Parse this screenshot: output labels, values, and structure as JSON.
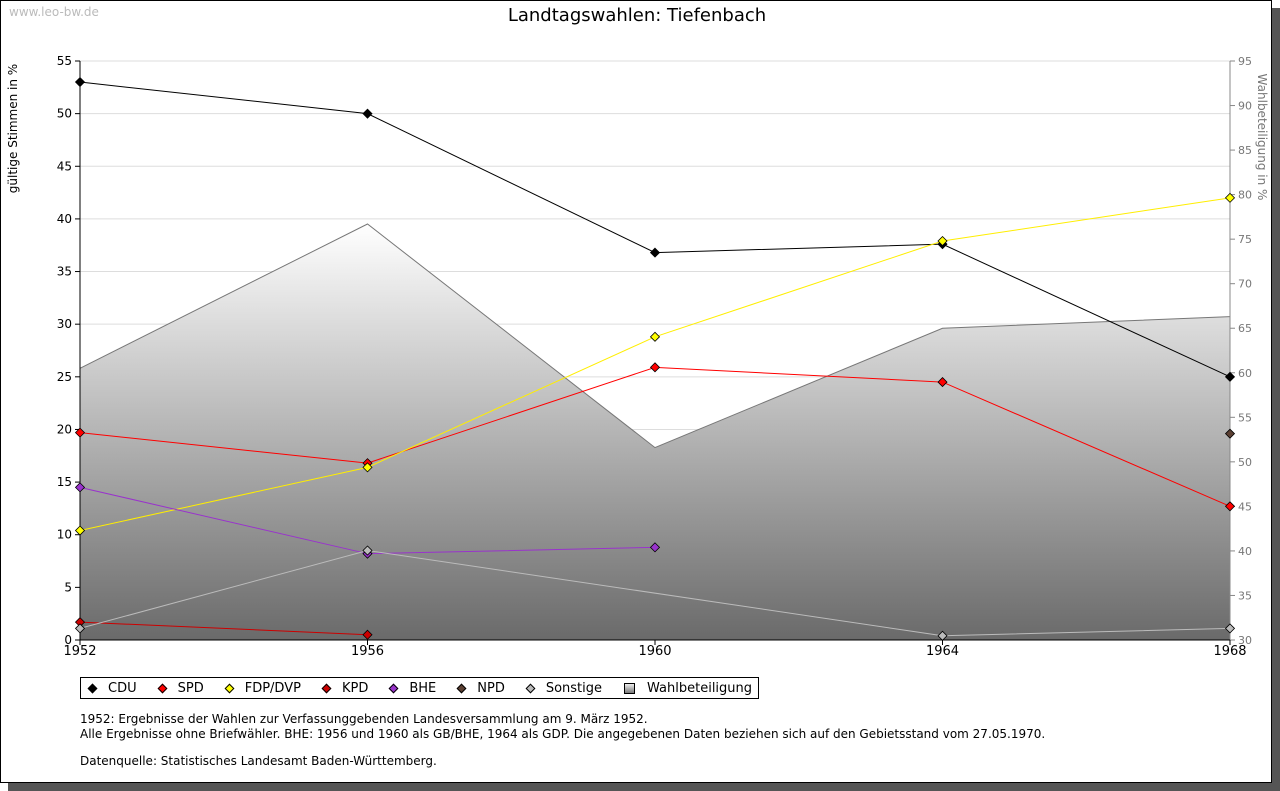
{
  "watermark": "www.leo-bw.de",
  "title": "Landtagswahlen: Tiefenbach",
  "chart_data": {
    "type": "line",
    "title": "Landtagswahlen: Tiefenbach",
    "xlabel": "",
    "ylabel": "gültige Stimmen in %",
    "y2label": "Wahlbeteiligung in %",
    "x": [
      1952,
      1956,
      1960,
      1964,
      1968
    ],
    "ylim": [
      0,
      55
    ],
    "y2lim": [
      30,
      95
    ],
    "yticks": [
      0,
      5,
      10,
      15,
      20,
      25,
      30,
      35,
      40,
      45,
      50,
      55
    ],
    "y2ticks": [
      30,
      35,
      40,
      45,
      50,
      55,
      60,
      65,
      70,
      75,
      80,
      85,
      90,
      95
    ],
    "grid": true,
    "legend_position": "bottom",
    "series": [
      {
        "name": "CDU",
        "color": "#000000",
        "values": [
          53.0,
          50.0,
          36.8,
          37.6,
          25.0
        ]
      },
      {
        "name": "SPD",
        "color": "#ff0000",
        "values": [
          19.7,
          16.8,
          25.9,
          24.5,
          12.7
        ]
      },
      {
        "name": "FDP/DVP",
        "color": "#ffff00",
        "values": [
          10.4,
          16.4,
          28.8,
          37.9,
          42.0
        ]
      },
      {
        "name": "KPD",
        "color": "#cc0000",
        "values": [
          1.7,
          0.5,
          null,
          null,
          null
        ]
      },
      {
        "name": "BHE",
        "color": "#9933cc",
        "values": [
          14.5,
          8.2,
          8.8,
          null,
          null
        ]
      },
      {
        "name": "NPD",
        "color": "#5c4033",
        "values": [
          null,
          null,
          null,
          null,
          19.6
        ]
      },
      {
        "name": "Sonstige",
        "color": "#bbbbbb",
        "values": [
          1.1,
          8.5,
          null,
          0.4,
          1.1
        ]
      },
      {
        "name": "Wahlbeteiligung",
        "color": "#999999",
        "axis": "right",
        "type": "area",
        "values": [
          60.5,
          76.7,
          51.6,
          65.0,
          66.3
        ]
      }
    ]
  },
  "notes": [
    "1952: Ergebnisse der Wahlen zur Verfassunggebenden Landesversammlung am 9. März 1952.",
    "Alle Ergebnisse ohne Briefwähler. BHE: 1956 und 1960 als GB/BHE, 1964 als GDP. Die angegebenen Daten beziehen sich auf den Gebietsstand vom 27.05.1970.",
    "Datenquelle: Statistisches Landesamt Baden-Württemberg."
  ]
}
